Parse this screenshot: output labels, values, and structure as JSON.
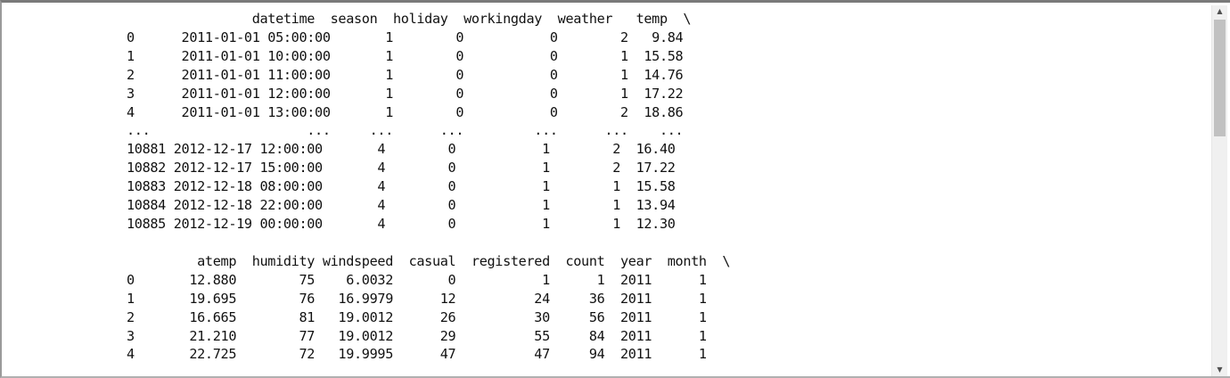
{
  "table1": {
    "header": "                datetime  season  holiday  workingday  weather   temp  \\",
    "rows": [
      "0      2011-01-01 05:00:00       1        0           0        2   9.84",
      "1      2011-01-01 10:00:00       1        0           0        1  15.58",
      "2      2011-01-01 11:00:00       1        0           0        1  14.76",
      "3      2011-01-01 12:00:00       1        0           0        1  17.22",
      "4      2011-01-01 13:00:00       1        0           0        2  18.86",
      "...                    ...     ...      ...         ...      ...    ...",
      "10881 2012-12-17 12:00:00       4        0           1        2  16.40",
      "10882 2012-12-17 15:00:00       4        0           1        2  17.22",
      "10883 2012-12-18 08:00:00       4        0           1        1  15.58",
      "10884 2012-12-18 22:00:00       4        0           1        1  13.94",
      "10885 2012-12-19 00:00:00       4        0           1        1  12.30"
    ]
  },
  "table2": {
    "header": "         atemp  humidity windspeed  casual  registered  count  year  month  \\",
    "rows": [
      "0       12.880        75    6.0032       0           1      1  2011      1",
      "1       19.695        76   16.9979      12          24     36  2011      1",
      "2       16.665        81   19.0012      26          30     56  2011      1",
      "3       21.210        77   19.0012      29          55     84  2011      1",
      "4       22.725        72   19.9995      47          47     94  2011      1"
    ]
  },
  "scrollbar": {
    "up_icon": "triangle-up-icon",
    "down_icon": "triangle-down-icon",
    "position_fraction": 0.0,
    "visible_fraction": 0.34
  }
}
